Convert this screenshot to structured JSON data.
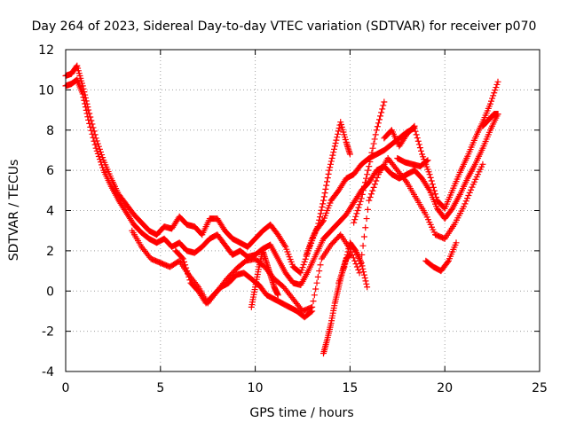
{
  "chart_data": {
    "type": "scatter",
    "title": "Day 264 of 2023, Sidereal Day-to-day VTEC variation (SDTVAR) for receiver p070",
    "xlabel": "GPS time / hours",
    "ylabel": "SDTVAR / TECUs",
    "xlim": [
      0,
      25
    ],
    "ylim": [
      -4,
      12
    ],
    "xticks": [
      "0",
      "5",
      "10",
      "15",
      "20",
      "25"
    ],
    "yticks": [
      "-4",
      "-2",
      "0",
      "2",
      "4",
      "6",
      "8",
      "10",
      "12"
    ],
    "grid": true,
    "marker": "plus",
    "color": "#ff0000",
    "series": [
      {
        "x": [
          0,
          0.3,
          0.6,
          0.9,
          1.2,
          1.6,
          2.0,
          2.4,
          2.8,
          3.2,
          3.6,
          4.0,
          4.4,
          4.8,
          5.2,
          5.6,
          6.0,
          6.4,
          6.8,
          7.2,
          7.6,
          8.0,
          8.4,
          8.8,
          9.2,
          9.6,
          10.0,
          10.4,
          10.8,
          11.2,
          11.6,
          12.0,
          12.4,
          12.8,
          13.2,
          13.6,
          14.0,
          14.4,
          14.8,
          15.2,
          15.6,
          16.0,
          16.4,
          16.8,
          17.2,
          17.6,
          18.0,
          18.4,
          18.8,
          19.2,
          19.6,
          20.0,
          20.4,
          20.8,
          21.2,
          21.6,
          22.0,
          22.4,
          22.8
        ],
        "y": [
          10.7,
          10.8,
          11.2,
          10.2,
          9.0,
          7.6,
          6.5,
          5.6,
          4.8,
          4.3,
          3.8,
          3.4,
          3.0,
          2.8,
          3.2,
          3.1,
          3.7,
          3.3,
          3.2,
          2.8,
          3.6,
          3.6,
          3.0,
          2.6,
          2.4,
          2.2,
          2.6,
          3.0,
          3.3,
          2.8,
          2.2,
          1.2,
          0.9,
          2.0,
          3.0,
          3.5,
          4.5,
          5.0,
          5.6,
          5.8,
          6.3,
          6.6,
          6.8,
          7.0,
          7.3,
          7.6,
          7.9,
          8.1,
          6.8,
          5.8,
          4.5,
          4.1,
          5.0,
          5.9,
          6.7,
          7.6,
          8.4,
          9.3,
          10.4
        ]
      },
      {
        "x": [
          0,
          0.3,
          0.6,
          0.9,
          1.2,
          1.6,
          2.0,
          2.4,
          2.8,
          3.2,
          3.6,
          4.0,
          4.4,
          4.8,
          5.2,
          5.6,
          6.0,
          6.4,
          6.8,
          7.2,
          7.6,
          8.0,
          8.4,
          8.8,
          9.2,
          9.6,
          10.0,
          10.4,
          10.8,
          11.2,
          11.6,
          12.0,
          12.4,
          12.8,
          13.2,
          13.6,
          14.0,
          14.4,
          14.8,
          15.2,
          15.6,
          16.0,
          16.4,
          16.8,
          17.2,
          17.6,
          18.0,
          18.4,
          18.8,
          19.2,
          19.6,
          20.0,
          20.4,
          20.8,
          21.2,
          21.6,
          22.0,
          22.4,
          22.8
        ],
        "y": [
          10.2,
          10.3,
          10.5,
          9.8,
          8.5,
          7.1,
          6.0,
          5.2,
          4.5,
          3.9,
          3.3,
          2.9,
          2.6,
          2.4,
          2.6,
          2.2,
          2.4,
          2.0,
          1.9,
          2.2,
          2.6,
          2.8,
          2.3,
          1.8,
          2.0,
          1.7,
          1.8,
          2.1,
          2.3,
          1.6,
          0.9,
          0.4,
          0.3,
          1.0,
          1.8,
          2.6,
          3.0,
          3.4,
          3.8,
          4.4,
          5.0,
          5.4,
          6.0,
          6.2,
          5.8,
          5.6,
          5.8,
          6.0,
          5.6,
          5.0,
          4.1,
          3.6,
          4.1,
          4.8,
          5.6,
          6.3,
          7.1,
          8.0,
          8.8
        ]
      },
      {
        "x": [
          3.5,
          4.0,
          4.5,
          5.0,
          5.5,
          6.0,
          6.5,
          7.0,
          7.5,
          8.0,
          8.5,
          9.0,
          9.5,
          10.0,
          10.5,
          11.0,
          11.5,
          12.0,
          12.5,
          13.0,
          13.5,
          14.0,
          14.5,
          15.0,
          15.5,
          16.0,
          16.5,
          17.0,
          17.5,
          18.0,
          18.5,
          19.0,
          19.5,
          20.0,
          20.5,
          21.0,
          21.5,
          22.0
        ],
        "y": [
          3.0,
          2.2,
          1.6,
          1.4,
          1.2,
          1.5,
          0.8,
          0.2,
          -0.6,
          0.0,
          0.6,
          1.1,
          1.5,
          1.6,
          1.2,
          0.6,
          0.2,
          -0.4,
          -1.0,
          -0.8,
          1.6,
          2.3,
          2.8,
          2.1,
          0.9,
          4.5,
          5.8,
          6.6,
          6.0,
          5.4,
          4.6,
          3.8,
          2.8,
          2.6,
          3.3,
          4.2,
          5.3,
          6.3
        ]
      },
      {
        "x": [
          5.8,
          6.2,
          6.6,
          7.0,
          7.4,
          7.8,
          8.2,
          8.6,
          9.0,
          9.4,
          9.8,
          10.2,
          10.6,
          11.0,
          11.4,
          11.8,
          12.2,
          12.6,
          13.0
        ],
        "y": [
          2.0,
          1.6,
          0.4,
          0.0,
          -0.6,
          -0.2,
          0.2,
          0.4,
          0.8,
          0.9,
          0.6,
          0.3,
          -0.2,
          -0.4,
          -0.6,
          -0.8,
          -1.0,
          -1.3,
          -1.0
        ]
      },
      {
        "x": [
          9.8,
          10.0,
          10.2,
          10.4,
          10.6,
          10.8,
          11.0,
          11.2
        ],
        "y": [
          -0.8,
          0.2,
          1.2,
          2.0,
          1.4,
          0.8,
          0.2,
          -0.2
        ]
      },
      {
        "x": [
          13.6,
          13.8,
          14.0,
          14.2,
          14.4,
          14.6,
          14.8,
          15.0
        ],
        "y": [
          -3.1,
          -2.4,
          -1.6,
          -0.6,
          0.2,
          1.0,
          1.6,
          1.8
        ]
      },
      {
        "x": [
          12.7,
          13.0,
          13.3,
          13.6,
          13.9,
          14.2,
          14.5,
          14.8,
          15.0
        ],
        "y": [
          1.8,
          2.6,
          3.2,
          4.5,
          6.0,
          7.2,
          8.4,
          7.4,
          6.8
        ]
      },
      {
        "x": [
          14.4,
          14.7,
          15.0,
          15.3,
          15.6,
          15.9
        ],
        "y": [
          0.4,
          1.2,
          2.4,
          2.0,
          1.4,
          0.2
        ]
      },
      {
        "x": [
          15.2,
          15.6,
          16.0,
          16.4,
          16.8
        ],
        "y": [
          3.4,
          4.6,
          6.2,
          8.0,
          9.4
        ]
      },
      {
        "x": [
          16.8,
          17.2,
          17.6,
          18.0,
          18.4
        ],
        "y": [
          7.6,
          8.0,
          7.2,
          7.8,
          8.2
        ]
      },
      {
        "x": [
          17.5,
          17.9,
          18.3,
          18.7,
          19.1
        ],
        "y": [
          6.6,
          6.4,
          6.3,
          6.2,
          6.5
        ]
      },
      {
        "x": [
          19.0,
          19.4,
          19.8,
          20.2,
          20.6
        ],
        "y": [
          1.5,
          1.2,
          1.0,
          1.5,
          2.4
        ]
      },
      {
        "x": [
          22.0,
          22.3,
          22.6,
          22.8
        ],
        "y": [
          8.2,
          8.5,
          8.8,
          8.8
        ]
      }
    ]
  }
}
